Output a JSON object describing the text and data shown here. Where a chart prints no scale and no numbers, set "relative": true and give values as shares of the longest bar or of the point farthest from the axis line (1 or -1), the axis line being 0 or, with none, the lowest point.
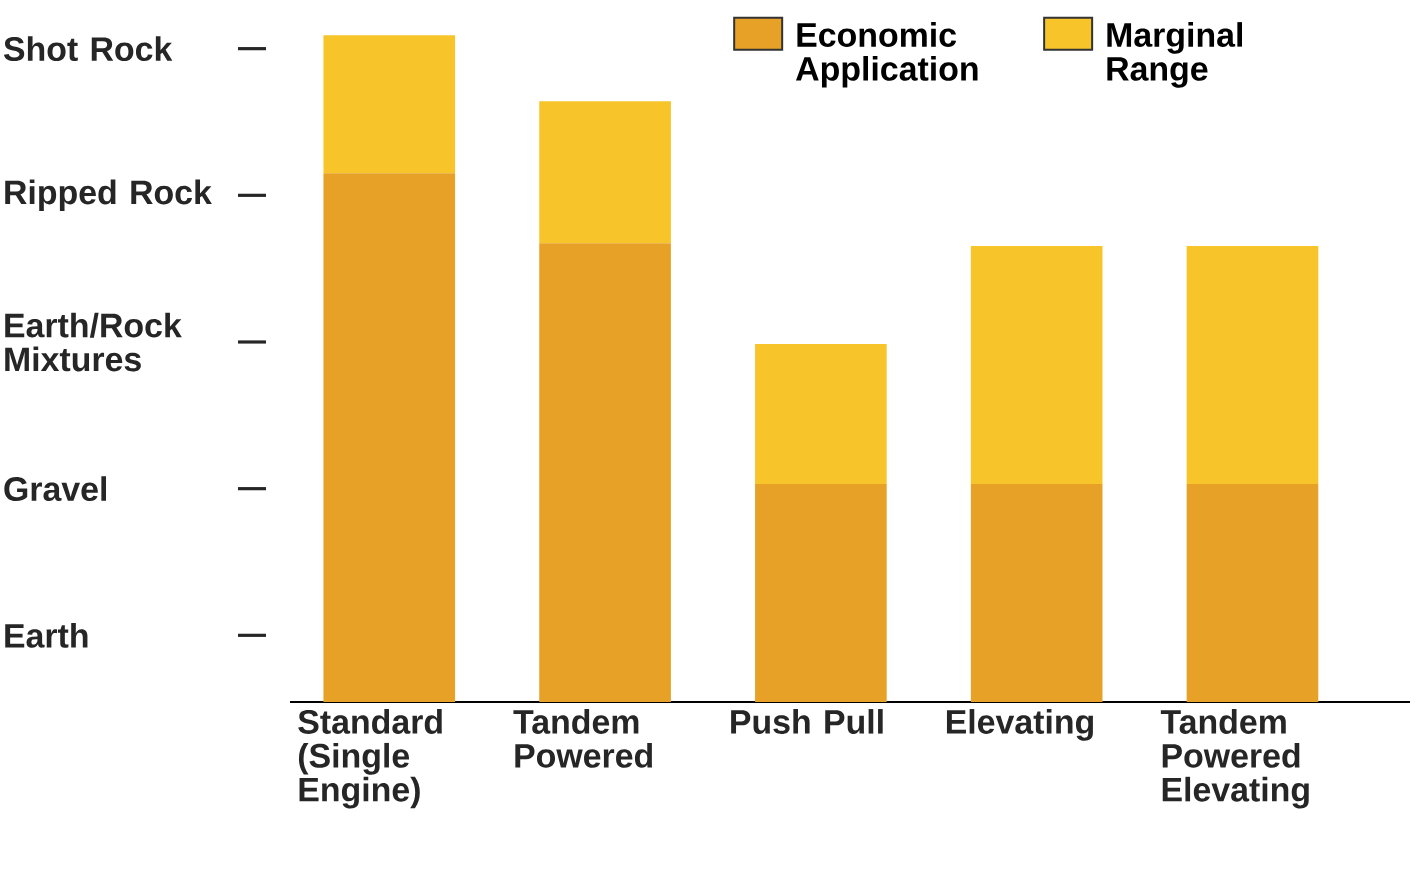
{
  "chart_data": {
    "type": "bar",
    "stacked": true,
    "relative": true,
    "categories": [
      "Standard (Single Engine)",
      "Tandem Powered",
      "Push Pull",
      "Elevating",
      "Tandem Powered Elevating"
    ],
    "series": [
      {
        "name": "Economic Application",
        "color": "#e6a126",
        "values": [
          0.793,
          0.688,
          0.327,
          0.327,
          0.327
        ]
      },
      {
        "name": "Marginal Range",
        "color": "#f7c52a",
        "values": [
          0.207,
          0.213,
          0.21,
          0.357,
          0.357
        ]
      }
    ],
    "annotations": [
      "Shot Rock",
      "Ripped Rock",
      "Earth/Rock Mixtures",
      "Gravel",
      "Earth"
    ],
    "legend": "top right"
  }
}
